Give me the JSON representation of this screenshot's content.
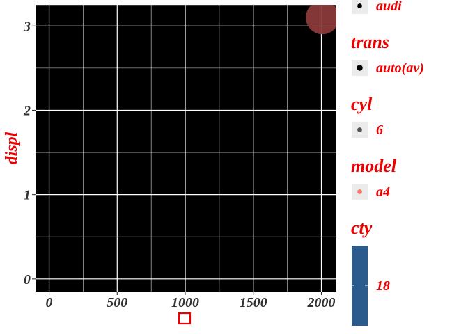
{
  "chart_data": {
    "type": "scatter",
    "title": "",
    "xlabel": "",
    "ylabel": "displ",
    "x_axis_title_icon": "red-outline-square",
    "xlim": [
      -100,
      2110
    ],
    "ylim": [
      -0.15,
      3.25
    ],
    "x_ticks": [
      0,
      500,
      1000,
      1500,
      2000
    ],
    "x_tick_labels": [
      "0",
      "500",
      "1000",
      "1500",
      "2000"
    ],
    "y_ticks": [
      0,
      1,
      2,
      3
    ],
    "y_tick_labels": [
      "0",
      "1",
      "2",
      "3"
    ],
    "grid": true,
    "panel_background": "#000000",
    "grid_color": "#ffffff",
    "points": [
      {
        "x": 2008,
        "y": 3.1,
        "manufacturer": "audi",
        "trans": "auto(av)",
        "cyl": "6",
        "model": "a4",
        "cty": 18,
        "color": "#8b3a3a",
        "opacity": 0.95
      }
    ],
    "legends": [
      {
        "title": "",
        "entries": [
          "audi"
        ],
        "key": "point",
        "point_color": "#000000",
        "point_size": 4
      },
      {
        "title": "trans",
        "entries": [
          "auto(av)"
        ],
        "key": "point",
        "point_color": "#000000",
        "point_size": 5
      },
      {
        "title": "cyl",
        "entries": [
          "6"
        ],
        "key": "point",
        "point_color": "#555555",
        "point_size": 4
      },
      {
        "title": "model",
        "entries": [
          "a4"
        ],
        "key": "point",
        "point_color": "#f8766d",
        "point_size": 4
      },
      {
        "title": "cty",
        "entries": [
          "18"
        ],
        "key": "colorbar",
        "colorbar_color": "#2b5b8c"
      }
    ],
    "text_color": "#ee0000",
    "tick_label_color": "#333333",
    "legend_key_background": "#ebebeb"
  }
}
